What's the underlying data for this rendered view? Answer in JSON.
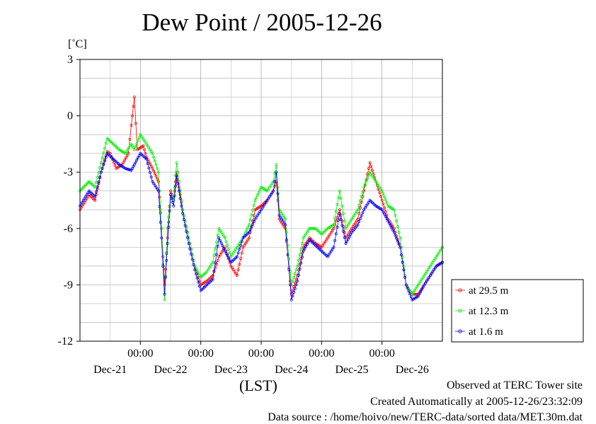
{
  "chart_data": {
    "type": "line",
    "title": "Dew Point / 2005-12-26",
    "ylabel_unit": "[˚C]",
    "xlabel": "(LST)",
    "ylim": [
      -12,
      3
    ],
    "xlim": [
      0,
      6
    ],
    "yticks": [
      3,
      0,
      -3,
      -6,
      -9,
      -12
    ],
    "ytick_labels": [
      "3",
      "0",
      "-3",
      "-6",
      "-9",
      "-12"
    ],
    "xtick_time_labels": [
      "00:00",
      "00:00",
      "00:00",
      "00:00",
      "00:00"
    ],
    "xtick_time_positions": [
      1,
      2,
      3,
      4,
      5
    ],
    "xtick_day_labels": [
      "Dec-21",
      "Dec-22",
      "Dec-23",
      "Dec-24",
      "Dec-25",
      "Dec-26"
    ],
    "xtick_day_positions": [
      0.5,
      1.5,
      2.5,
      3.5,
      4.5,
      5.5
    ],
    "grid": true,
    "legend_position": "right",
    "series": [
      {
        "name": "at 29.5 m",
        "color": "#ff0000",
        "points": [
          [
            0.0,
            -5.0
          ],
          [
            0.15,
            -4.2
          ],
          [
            0.25,
            -4.5
          ],
          [
            0.35,
            -3.0
          ],
          [
            0.45,
            -1.9
          ],
          [
            0.5,
            -2.0
          ],
          [
            0.6,
            -2.8
          ],
          [
            0.7,
            -2.6
          ],
          [
            0.8,
            -2.0
          ],
          [
            0.85,
            -0.5
          ],
          [
            0.9,
            1.0
          ],
          [
            0.95,
            -1.8
          ],
          [
            1.05,
            -1.6
          ],
          [
            1.1,
            -2.2
          ],
          [
            1.2,
            -2.8
          ],
          [
            1.3,
            -3.5
          ],
          [
            1.35,
            -6.0
          ],
          [
            1.4,
            -9.0
          ],
          [
            1.45,
            -6.5
          ],
          [
            1.5,
            -4.0
          ],
          [
            1.55,
            -4.5
          ],
          [
            1.6,
            -3.0
          ],
          [
            1.7,
            -5.0
          ],
          [
            1.8,
            -6.5
          ],
          [
            1.9,
            -8.0
          ],
          [
            2.0,
            -9.0
          ],
          [
            2.1,
            -8.8
          ],
          [
            2.2,
            -8.5
          ],
          [
            2.3,
            -7.5
          ],
          [
            2.4,
            -7.0
          ],
          [
            2.5,
            -8.0
          ],
          [
            2.6,
            -8.5
          ],
          [
            2.7,
            -7.0
          ],
          [
            2.8,
            -6.5
          ],
          [
            2.9,
            -5.0
          ],
          [
            3.0,
            -4.8
          ],
          [
            3.1,
            -4.5
          ],
          [
            3.2,
            -4.0
          ],
          [
            3.25,
            -3.5
          ],
          [
            3.3,
            -5.5
          ],
          [
            3.4,
            -6.0
          ],
          [
            3.5,
            -9.5
          ],
          [
            3.6,
            -8.5
          ],
          [
            3.7,
            -7.0
          ],
          [
            3.8,
            -6.5
          ],
          [
            3.9,
            -6.8
          ],
          [
            4.0,
            -7.0
          ],
          [
            4.1,
            -6.5
          ],
          [
            4.2,
            -6.0
          ],
          [
            4.3,
            -5.0
          ],
          [
            4.4,
            -6.5
          ],
          [
            4.5,
            -6.0
          ],
          [
            4.6,
            -5.5
          ],
          [
            4.7,
            -4.0
          ],
          [
            4.8,
            -2.5
          ],
          [
            4.9,
            -3.5
          ],
          [
            5.0,
            -4.5
          ],
          [
            5.1,
            -5.5
          ],
          [
            5.2,
            -6.0
          ],
          [
            5.3,
            -7.0
          ],
          [
            5.4,
            -9.0
          ],
          [
            5.5,
            -9.5
          ],
          [
            5.6,
            -9.5
          ],
          [
            5.7,
            -9.0
          ],
          [
            5.8,
            -8.5
          ],
          [
            5.9,
            -8.0
          ],
          [
            6.0,
            -7.8
          ]
        ]
      },
      {
        "name": "at 12.3 m",
        "color": "#00ee00",
        "points": [
          [
            0.0,
            -4.0
          ],
          [
            0.15,
            -3.5
          ],
          [
            0.25,
            -3.8
          ],
          [
            0.35,
            -2.5
          ],
          [
            0.45,
            -1.2
          ],
          [
            0.55,
            -1.5
          ],
          [
            0.65,
            -1.8
          ],
          [
            0.75,
            -2.0
          ],
          [
            0.85,
            -1.5
          ],
          [
            0.9,
            -1.8
          ],
          [
            1.0,
            -1.0
          ],
          [
            1.1,
            -1.5
          ],
          [
            1.2,
            -2.0
          ],
          [
            1.3,
            -3.0
          ],
          [
            1.35,
            -6.0
          ],
          [
            1.4,
            -9.8
          ],
          [
            1.45,
            -6.0
          ],
          [
            1.5,
            -4.2
          ],
          [
            1.55,
            -4.5
          ],
          [
            1.6,
            -2.5
          ],
          [
            1.7,
            -5.0
          ],
          [
            1.8,
            -6.5
          ],
          [
            1.9,
            -8.0
          ],
          [
            2.0,
            -8.6
          ],
          [
            2.1,
            -8.3
          ],
          [
            2.2,
            -7.8
          ],
          [
            2.3,
            -6.0
          ],
          [
            2.4,
            -6.5
          ],
          [
            2.5,
            -7.5
          ],
          [
            2.6,
            -7.0
          ],
          [
            2.7,
            -6.5
          ],
          [
            2.8,
            -5.8
          ],
          [
            2.9,
            -4.5
          ],
          [
            3.0,
            -3.8
          ],
          [
            3.1,
            -4.0
          ],
          [
            3.2,
            -3.5
          ],
          [
            3.25,
            -2.6
          ],
          [
            3.3,
            -5.0
          ],
          [
            3.4,
            -5.5
          ],
          [
            3.5,
            -9.0
          ],
          [
            3.6,
            -8.0
          ],
          [
            3.7,
            -6.5
          ],
          [
            3.8,
            -6.0
          ],
          [
            3.9,
            -6.0
          ],
          [
            4.0,
            -6.3
          ],
          [
            4.1,
            -6.0
          ],
          [
            4.2,
            -5.8
          ],
          [
            4.3,
            -4.0
          ],
          [
            4.4,
            -6.0
          ],
          [
            4.5,
            -5.5
          ],
          [
            4.6,
            -5.0
          ],
          [
            4.7,
            -3.8
          ],
          [
            4.8,
            -3.0
          ],
          [
            4.9,
            -3.5
          ],
          [
            5.0,
            -4.0
          ],
          [
            5.1,
            -4.8
          ],
          [
            5.2,
            -5.0
          ],
          [
            5.3,
            -6.5
          ],
          [
            5.4,
            -9.0
          ],
          [
            5.5,
            -9.5
          ],
          [
            5.6,
            -9.0
          ],
          [
            5.7,
            -8.5
          ],
          [
            5.8,
            -8.0
          ],
          [
            5.9,
            -7.5
          ],
          [
            6.0,
            -7.0
          ]
        ]
      },
      {
        "name": "at 1.6 m",
        "color": "#0000ff",
        "points": [
          [
            0.0,
            -4.8
          ],
          [
            0.15,
            -4.0
          ],
          [
            0.25,
            -4.3
          ],
          [
            0.35,
            -3.0
          ],
          [
            0.45,
            -2.0
          ],
          [
            0.55,
            -2.3
          ],
          [
            0.65,
            -2.6
          ],
          [
            0.75,
            -2.8
          ],
          [
            0.85,
            -2.9
          ],
          [
            0.9,
            -2.6
          ],
          [
            1.0,
            -2.0
          ],
          [
            1.1,
            -2.3
          ],
          [
            1.2,
            -3.5
          ],
          [
            1.3,
            -4.0
          ],
          [
            1.35,
            -6.5
          ],
          [
            1.4,
            -9.5
          ],
          [
            1.45,
            -6.8
          ],
          [
            1.5,
            -4.2
          ],
          [
            1.55,
            -4.8
          ],
          [
            1.6,
            -3.2
          ],
          [
            1.7,
            -5.2
          ],
          [
            1.8,
            -6.8
          ],
          [
            1.9,
            -8.2
          ],
          [
            2.0,
            -9.3
          ],
          [
            2.1,
            -9.0
          ],
          [
            2.2,
            -8.7
          ],
          [
            2.3,
            -6.5
          ],
          [
            2.4,
            -7.2
          ],
          [
            2.5,
            -7.8
          ],
          [
            2.6,
            -7.5
          ],
          [
            2.7,
            -6.5
          ],
          [
            2.8,
            -6.2
          ],
          [
            2.9,
            -5.5
          ],
          [
            3.0,
            -5.0
          ],
          [
            3.1,
            -4.5
          ],
          [
            3.2,
            -4.0
          ],
          [
            3.25,
            -3.0
          ],
          [
            3.3,
            -5.3
          ],
          [
            3.4,
            -5.8
          ],
          [
            3.5,
            -9.8
          ],
          [
            3.6,
            -8.8
          ],
          [
            3.7,
            -7.2
          ],
          [
            3.8,
            -6.6
          ],
          [
            3.9,
            -6.9
          ],
          [
            4.0,
            -7.2
          ],
          [
            4.1,
            -7.5
          ],
          [
            4.2,
            -7.0
          ],
          [
            4.3,
            -5.2
          ],
          [
            4.4,
            -6.8
          ],
          [
            4.5,
            -6.2
          ],
          [
            4.6,
            -5.8
          ],
          [
            4.7,
            -5.0
          ],
          [
            4.8,
            -4.5
          ],
          [
            4.9,
            -4.8
          ],
          [
            5.0,
            -5.0
          ],
          [
            5.1,
            -5.6
          ],
          [
            5.2,
            -6.2
          ],
          [
            5.3,
            -7.0
          ],
          [
            5.4,
            -9.0
          ],
          [
            5.5,
            -9.8
          ],
          [
            5.6,
            -9.6
          ],
          [
            5.7,
            -9.0
          ],
          [
            5.8,
            -8.5
          ],
          [
            5.9,
            -8.0
          ],
          [
            6.0,
            -7.8
          ]
        ]
      }
    ]
  },
  "footer": {
    "line1": "Observed at TERC Tower site",
    "line2": "Created Automatically at 2005-12-26/23:32:09",
    "line3": "Data source : /home/hoivo/new/TERC-data/sorted  data/MET.30m.dat"
  }
}
